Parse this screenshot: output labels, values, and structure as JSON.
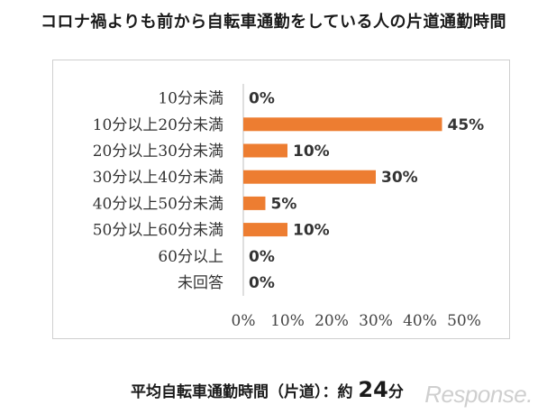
{
  "header": {
    "title": "コロナ禍よりも前から自転車通勤をしている人の片道通勤時間"
  },
  "chart_data": {
    "type": "bar",
    "orientation": "horizontal",
    "categories": [
      "10分未満",
      "10分以上20分未満",
      "20分以上30分未満",
      "30分以上40分未満",
      "40分以上50分未満",
      "50分以上60分未満",
      "60分以上",
      "未回答"
    ],
    "values": [
      0,
      45,
      10,
      30,
      5,
      10,
      0,
      0
    ],
    "value_labels": [
      "0%",
      "45%",
      "10%",
      "30%",
      "5%",
      "10%",
      "0%",
      "0%"
    ],
    "x_ticks": [
      "0%",
      "10%",
      "20%",
      "30%",
      "40%",
      "50%"
    ],
    "xlim": [
      0,
      50
    ],
    "grid": false,
    "bar_color": "#ED7D31"
  },
  "footer": {
    "label": "平均自転車通勤時間（片道）：約",
    "value": "24",
    "unit": "分"
  },
  "watermark": "Response."
}
